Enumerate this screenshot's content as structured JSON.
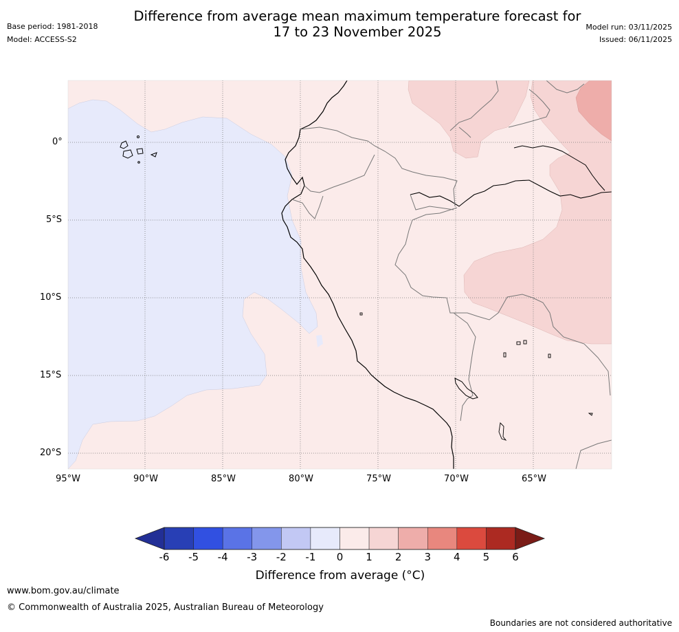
{
  "header": {
    "title_line1": "Difference from average mean maximum temperature forecast for",
    "title_line2": "17 to 23 November 2025",
    "base_period": "Base period: 1981-2018",
    "model": "Model: ACCESS-S2",
    "model_run": "Model run: 03/11/2025",
    "issued": "Issued: 06/11/2025"
  },
  "map": {
    "lat_labels": [
      "0°",
      "5°S",
      "10°S",
      "15°S",
      "20°S"
    ],
    "lon_labels": [
      "95°W",
      "90°W",
      "85°W",
      "80°W",
      "75°W",
      "70°W",
      "65°W"
    ],
    "colors": {
      "cool_minus1_0": "#e7eafb",
      "warm_0_1": "#fbebea",
      "warm_1_2": "#f6d5d4",
      "warm_2_3": "#eeadaa"
    }
  },
  "colorbar": {
    "ticks": [
      "-6",
      "-5",
      "-4",
      "-3",
      "-2",
      "-1",
      "0",
      "1",
      "2",
      "3",
      "4",
      "5",
      "6"
    ],
    "label": "Difference from average (°C)",
    "colors": [
      "#222f96",
      "#283fb5",
      "#3150e1",
      "#5a73e6",
      "#8396eb",
      "#c2c8f4",
      "#e7eafb",
      "#fbebea",
      "#f6d5d4",
      "#eeadaa",
      "#e8877e",
      "#db4a3e",
      "#ac2a22",
      "#7a1c17"
    ]
  },
  "footer": {
    "url": "www.bom.gov.au/climate",
    "copyright": "© Commonwealth of Australia 2025, Australian Bureau of Meteorology",
    "disclaimer": "Boundaries are not considered authoritative"
  }
}
